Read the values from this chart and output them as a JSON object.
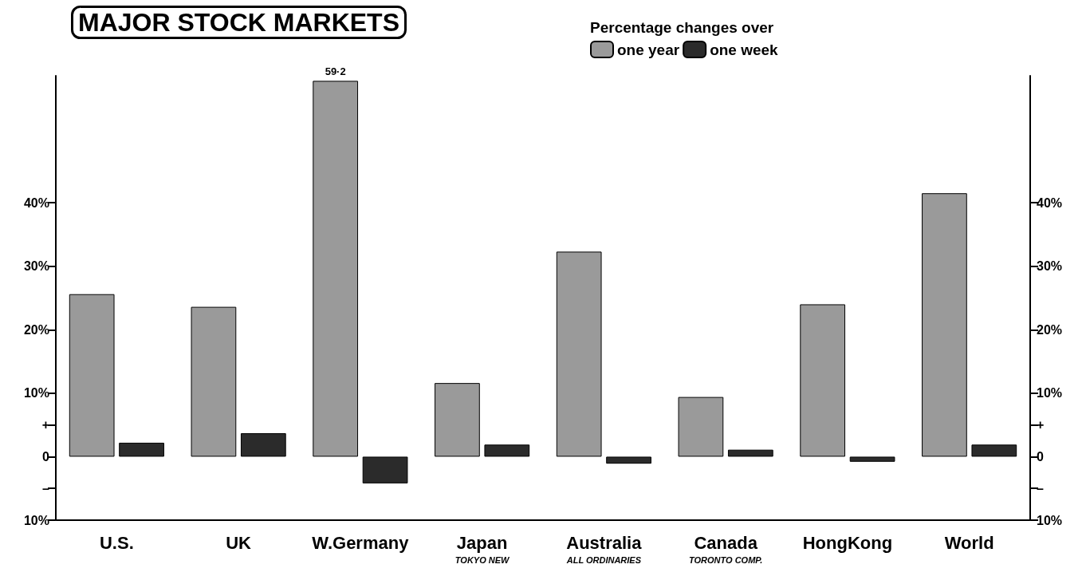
{
  "chart_data": {
    "type": "bar",
    "title": "MAJOR STOCK MARKETS",
    "legend_title": "Percentage changes over",
    "categories": [
      "U.S.",
      "UK",
      "W.Germany",
      "Japan\nTOKYO NEW",
      "Australia\nALL ORDINARIES",
      "Canada\nTORONTO COMP.",
      "HongKong",
      "World"
    ],
    "series": [
      {
        "name": "one year",
        "color": "#9a9a9a",
        "values": [
          25.6,
          23.6,
          59.2,
          11.6,
          32.3,
          9.4,
          24.0,
          41.5
        ],
        "value_labels": [
          null,
          null,
          "59·2",
          null,
          null,
          null,
          null,
          null
        ]
      },
      {
        "name": "one week",
        "color": "#2b2b2b",
        "values": [
          2.2,
          3.7,
          -4.2,
          1.9,
          -1.1,
          1.1,
          -0.8,
          1.9
        ]
      }
    ],
    "ylim": [
      -10,
      60
    ],
    "yticks": [
      {
        "value": -10,
        "label": "10%"
      },
      {
        "value": -5,
        "label": "–"
      },
      {
        "value": 0,
        "label": "0"
      },
      {
        "value": 5,
        "label": "+"
      },
      {
        "value": 10,
        "label": "10%"
      },
      {
        "value": 20,
        "label": "20%"
      },
      {
        "value": 30,
        "label": "30%"
      },
      {
        "value": 40,
        "label": "40%"
      }
    ],
    "y2lim": [
      -10,
      60
    ],
    "y2ticks": [
      {
        "value": -10,
        "label": "10%"
      },
      {
        "value": -5,
        "label": "–"
      },
      {
        "value": 0,
        "label": "0"
      },
      {
        "value": 5,
        "label": "+"
      },
      {
        "value": 10,
        "label": "10%"
      },
      {
        "value": 20,
        "label": "20%"
      },
      {
        "value": 30,
        "label": "30%"
      },
      {
        "value": 40,
        "label": "40%"
      }
    ],
    "legend": "top",
    "grid": false
  }
}
